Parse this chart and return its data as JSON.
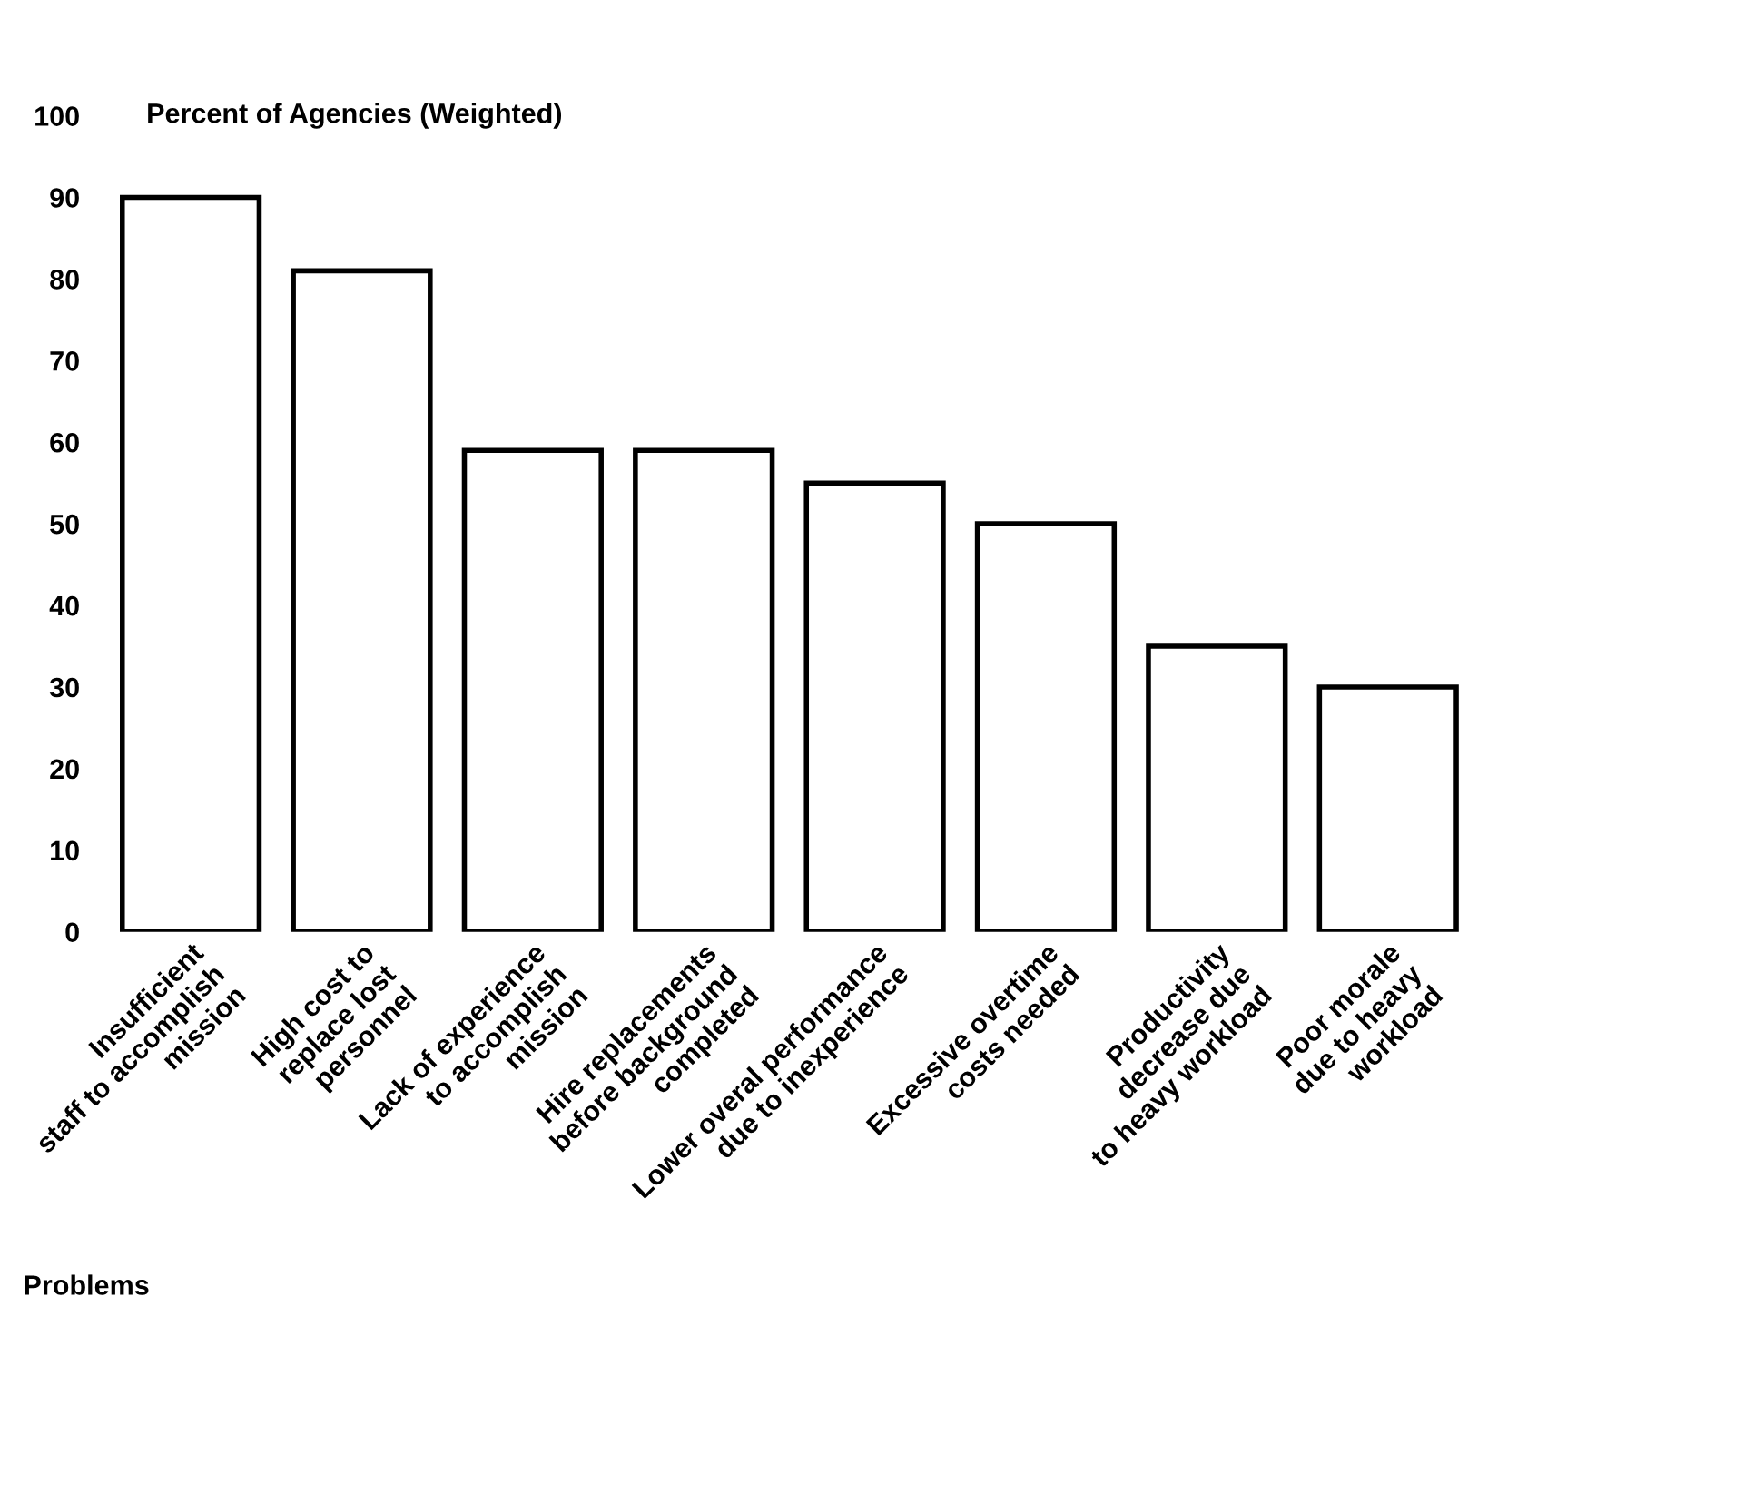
{
  "chart_data": {
    "type": "bar",
    "ylabel": "Percent of Agencies (Weighted)",
    "xlabel": "Problems",
    "categories": [
      "Insufficient\nstaff to accomplish\nmission",
      "High cost to\nreplace lost\npersonnel",
      "Lack of experience\nto accomplish\nmission",
      "Hire replacements\nbefore background\ncompleted",
      "Lower overal performance\ndue to inexperience",
      "Excessive overtime\ncosts needed",
      "Productivity\ndecrease due\nto heavy workload",
      "Poor morale\ndue to heavy\nworkload"
    ],
    "values": [
      90,
      81,
      59,
      59,
      55,
      50,
      35,
      30
    ],
    "color": "#ffffff",
    "ylim": [
      0,
      100
    ],
    "yticks": [
      0,
      10,
      20,
      30,
      40,
      50,
      60,
      70,
      80,
      90,
      100
    ],
    "grid": false,
    "legend": false
  }
}
